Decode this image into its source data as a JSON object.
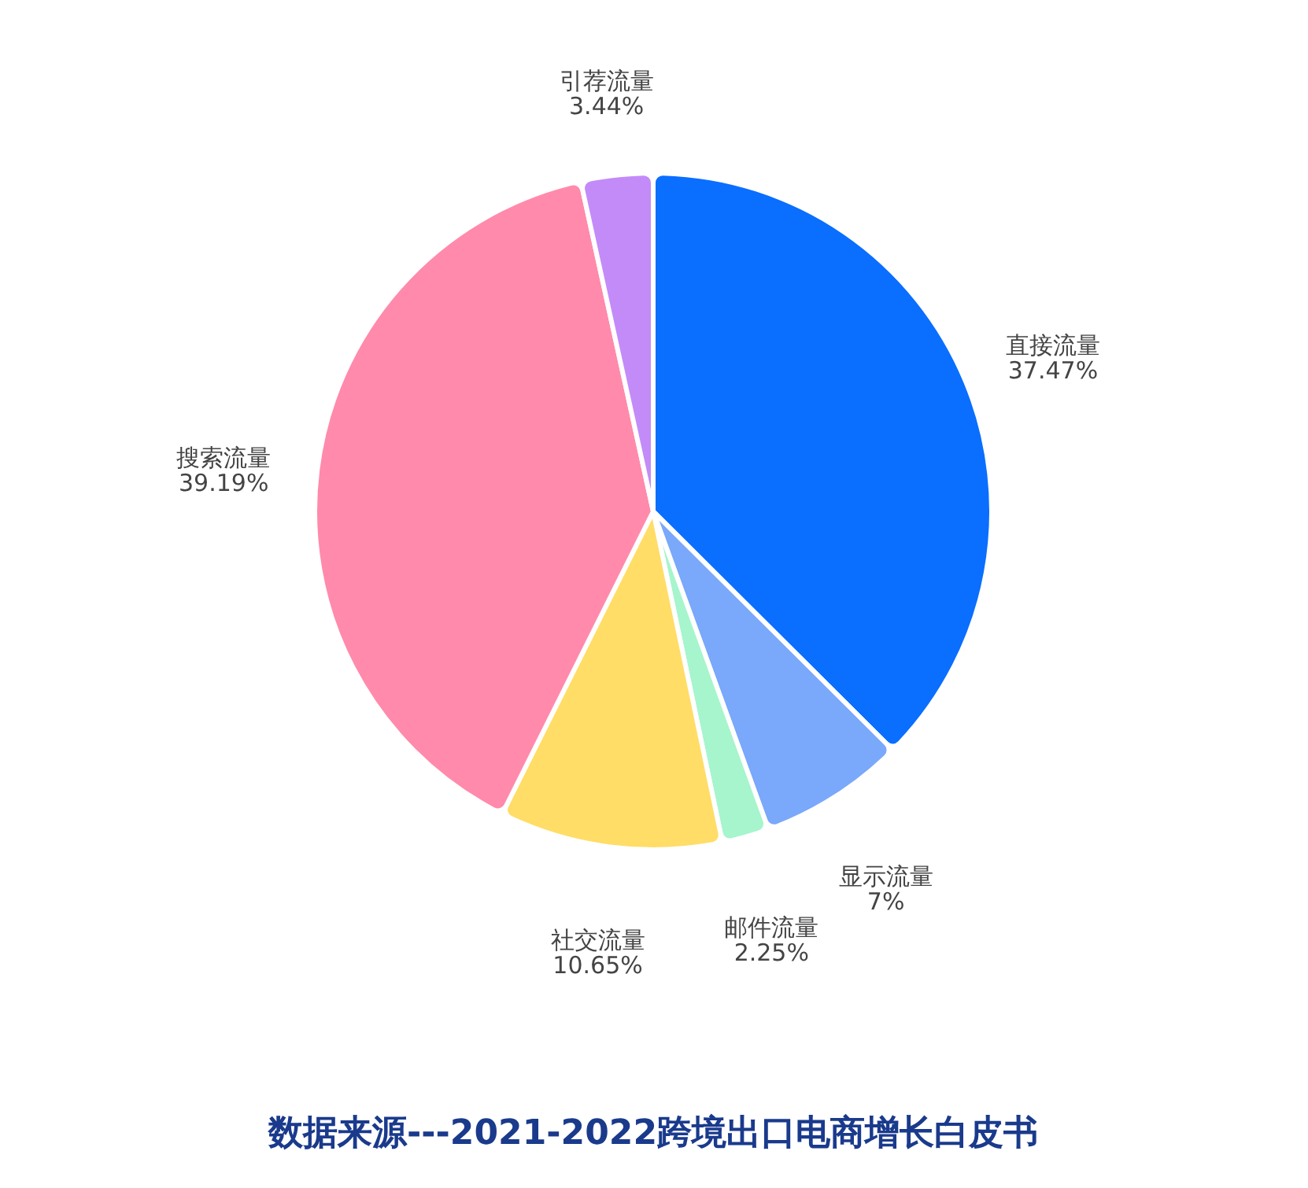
{
  "chart_data": {
    "type": "pie",
    "categories": [
      "直接流量",
      "显示流量",
      "邮件流量",
      "社交流量",
      "搜索流量",
      "引荐流量"
    ],
    "values": [
      37.47,
      7,
      2.25,
      10.65,
      39.19,
      3.44
    ],
    "value_labels": [
      "37.47%",
      "7%",
      "2.25%",
      "10.65%",
      "39.19%",
      "3.44%"
    ],
    "colors": [
      "#0a6eff",
      "#7aa8fa",
      "#a6f5cc",
      "#ffdd66",
      "#ff8aac",
      "#c38bf8"
    ],
    "annotations": [
      "数据来源---2021-2022跨境出口电商增长白皮书"
    ]
  }
}
